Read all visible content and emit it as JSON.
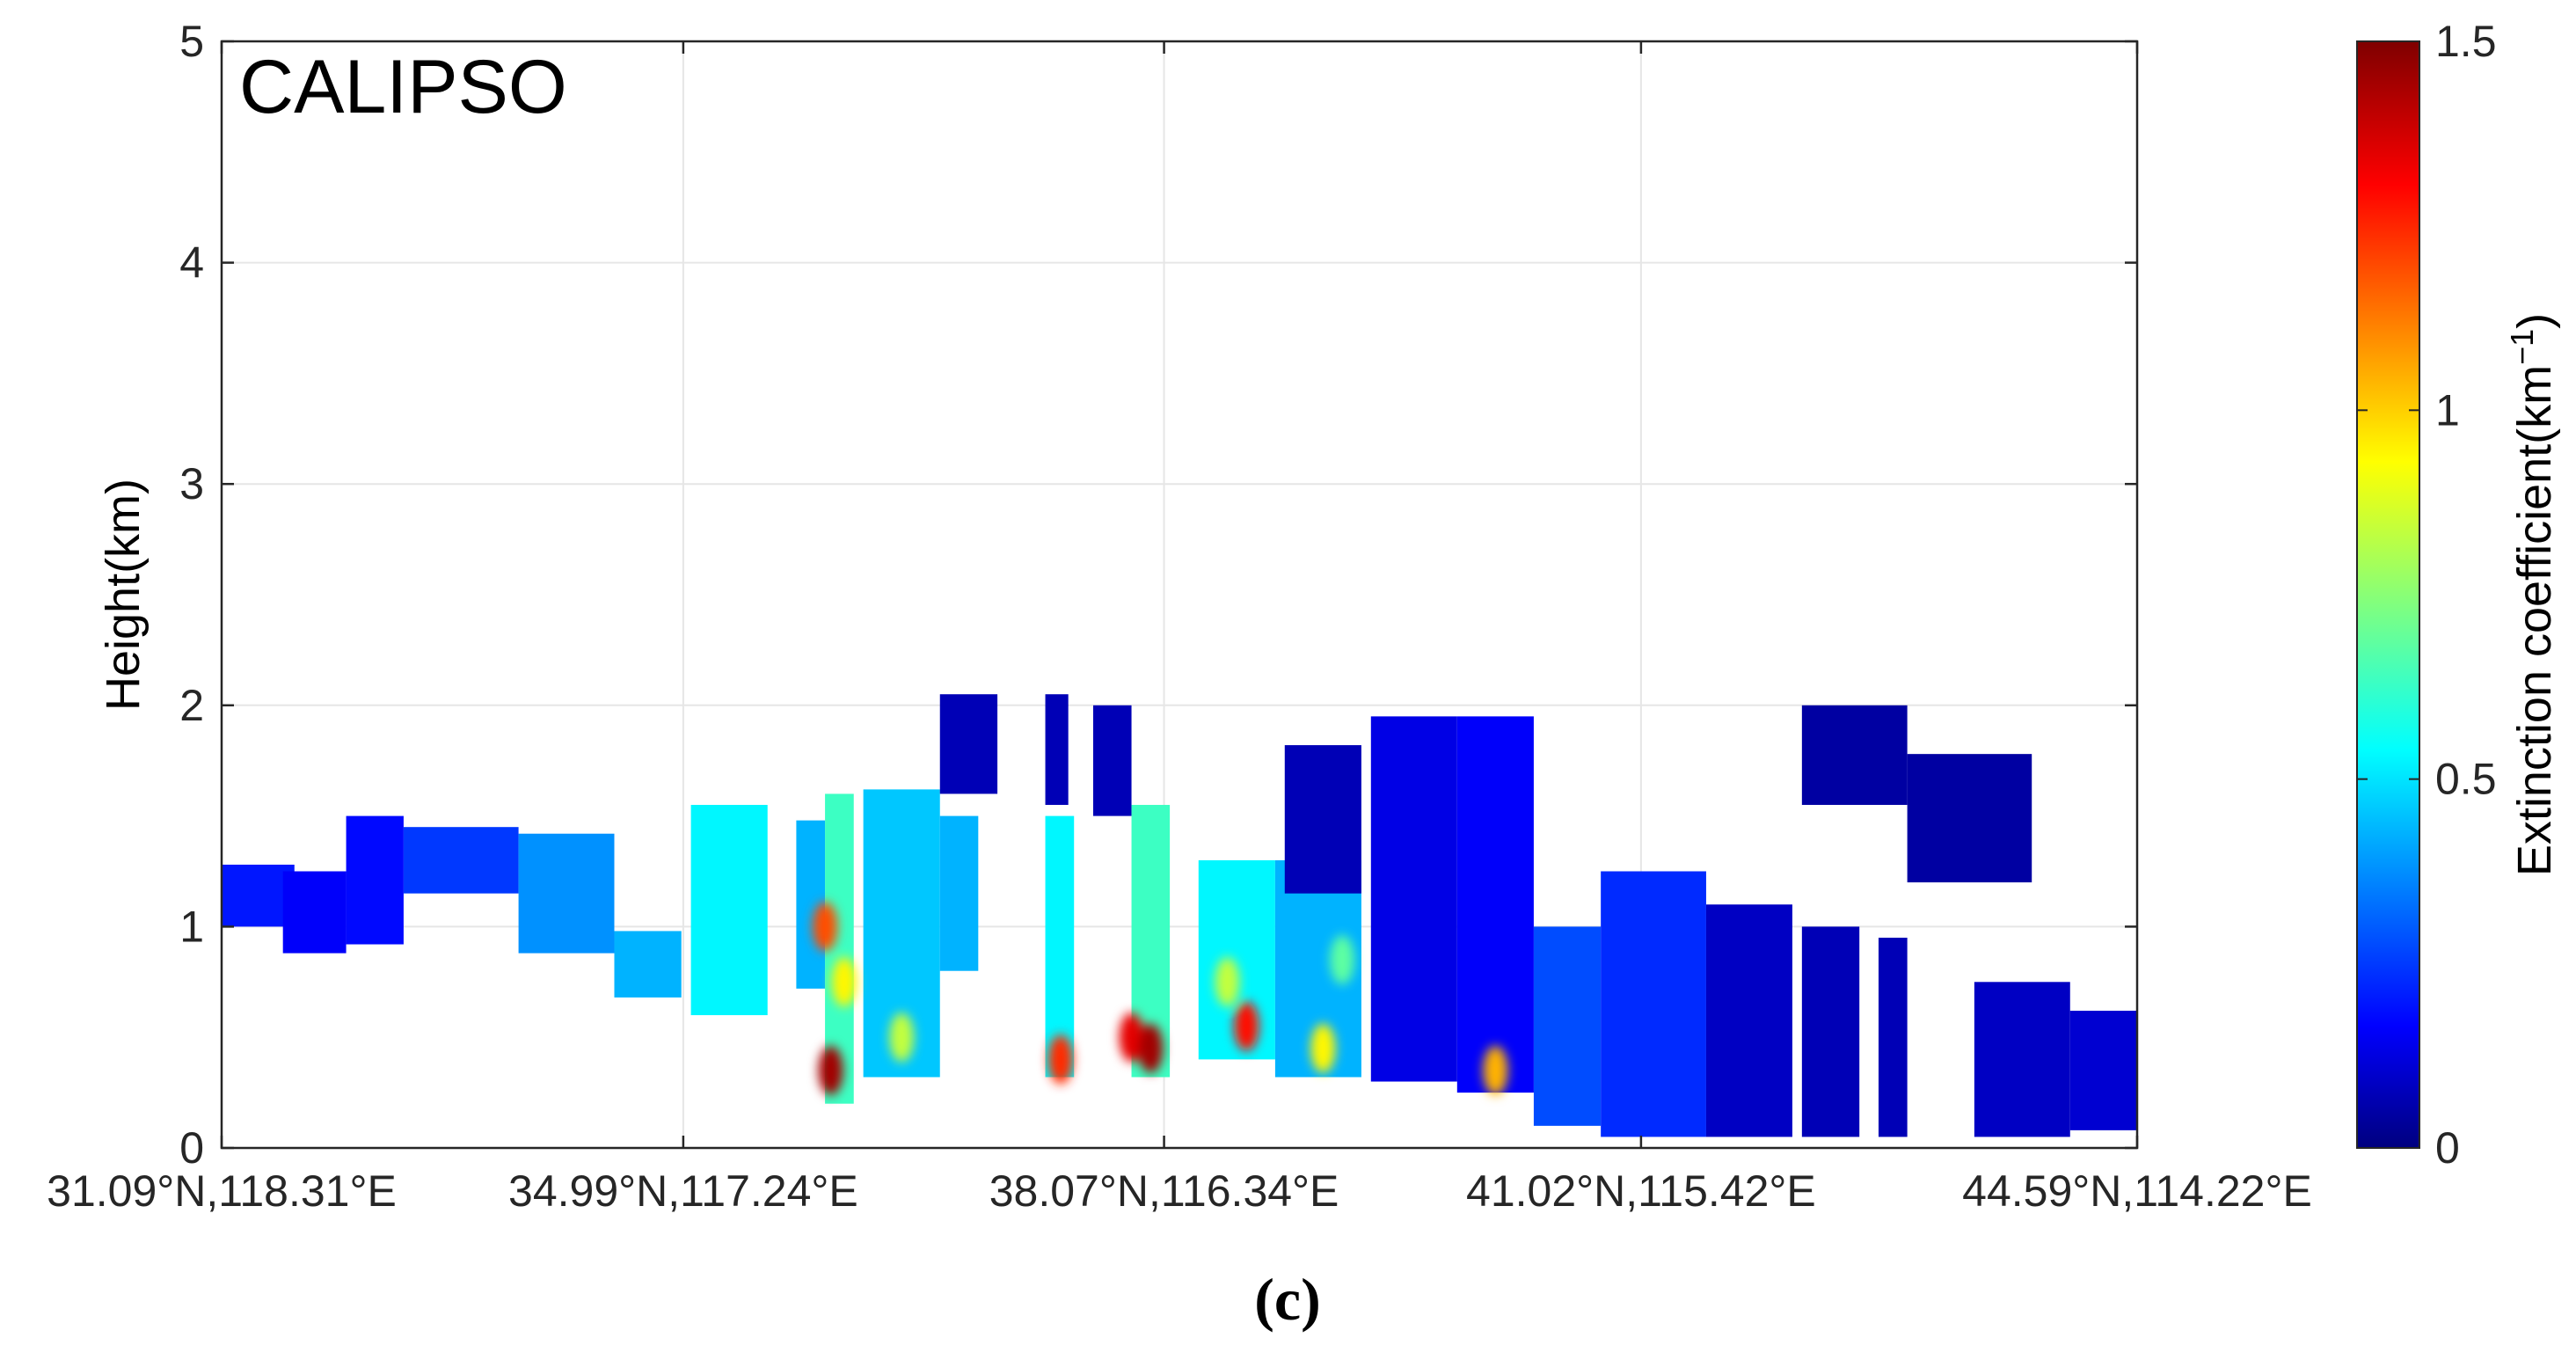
{
  "chart_data": {
    "type": "heatmap",
    "title": "CALIPSO",
    "caption": "(c)",
    "ylabel": "Height(km)",
    "xlabel": "",
    "ylim": [
      0,
      5
    ],
    "yticks": [
      "0",
      "1",
      "2",
      "3",
      "4",
      "5"
    ],
    "xlim": [
      0,
      100
    ],
    "xticks": [
      {
        "pos": 0,
        "label": "31.09°N,118.31°E"
      },
      {
        "pos": 24.1,
        "label": "34.99°N,117.24°E"
      },
      {
        "pos": 49.2,
        "label": "38.07°N,116.34°E"
      },
      {
        "pos": 74.1,
        "label": "41.02°N,115.42°E"
      },
      {
        "pos": 100,
        "label": "44.59°N,114.22°E"
      }
    ],
    "grid": true,
    "colorbar": {
      "label_main": "Extinction coefficient(km",
      "label_sup": "−1",
      "label_close": ")",
      "range": [
        0,
        1.5
      ],
      "ticks": [
        "0",
        "0.5",
        "1",
        "1.5"
      ],
      "colormap": "jet"
    },
    "columns": [
      {
        "x0": 0.0,
        "x1": 3.8,
        "bottom": 1.0,
        "top": 1.28,
        "value": 0.22
      },
      {
        "x0": 3.2,
        "x1": 6.5,
        "bottom": 0.88,
        "top": 1.25,
        "value": 0.18
      },
      {
        "x0": 6.5,
        "x1": 9.5,
        "bottom": 0.92,
        "top": 1.5,
        "value": 0.2
      },
      {
        "x0": 9.5,
        "x1": 15.5,
        "bottom": 1.15,
        "top": 1.45,
        "value": 0.27
      },
      {
        "x0": 15.5,
        "x1": 20.5,
        "bottom": 0.88,
        "top": 1.42,
        "value": 0.4
      },
      {
        "x0": 20.5,
        "x1": 24.0,
        "bottom": 0.68,
        "top": 0.98,
        "value": 0.45
      },
      {
        "x0": 24.5,
        "x1": 28.5,
        "bottom": 0.6,
        "top": 1.55,
        "value": 0.55
      },
      {
        "x0": 30.0,
        "x1": 31.5,
        "bottom": 0.72,
        "top": 1.48,
        "value": 0.45
      },
      {
        "x0": 31.5,
        "x1": 33.0,
        "bottom": 0.2,
        "top": 1.6,
        "value": 0.65
      },
      {
        "x0": 33.5,
        "x1": 37.5,
        "bottom": 0.32,
        "top": 1.62,
        "value": 0.48
      },
      {
        "x0": 37.5,
        "x1": 40.5,
        "bottom": 1.6,
        "top": 2.05,
        "value": 0.08
      },
      {
        "x0": 37.5,
        "x1": 39.5,
        "bottom": 0.8,
        "top": 1.5,
        "value": 0.45
      },
      {
        "x0": 43.0,
        "x1": 44.2,
        "bottom": 1.55,
        "top": 2.05,
        "value": 0.08
      },
      {
        "x0": 43.0,
        "x1": 44.5,
        "bottom": 0.32,
        "top": 1.5,
        "value": 0.55
      },
      {
        "x0": 45.5,
        "x1": 47.5,
        "bottom": 1.5,
        "top": 2.0,
        "value": 0.08
      },
      {
        "x0": 47.5,
        "x1": 49.5,
        "bottom": 0.32,
        "top": 1.55,
        "value": 0.65
      },
      {
        "x0": 51.0,
        "x1": 55.0,
        "bottom": 0.4,
        "top": 1.3,
        "value": 0.55
      },
      {
        "x0": 55.0,
        "x1": 59.5,
        "bottom": 0.32,
        "top": 1.3,
        "value": 0.45
      },
      {
        "x0": 55.5,
        "x1": 59.5,
        "bottom": 1.15,
        "top": 1.82,
        "value": 0.08
      },
      {
        "x0": 60.0,
        "x1": 64.5,
        "bottom": 0.3,
        "top": 1.95,
        "value": 0.15
      },
      {
        "x0": 64.5,
        "x1": 68.5,
        "bottom": 0.25,
        "top": 1.95,
        "value": 0.18
      },
      {
        "x0": 68.5,
        "x1": 72.0,
        "bottom": 0.1,
        "top": 1.0,
        "value": 0.3
      },
      {
        "x0": 72.0,
        "x1": 77.5,
        "bottom": 0.05,
        "top": 1.25,
        "value": 0.25
      },
      {
        "x0": 77.5,
        "x1": 82.0,
        "bottom": 0.05,
        "top": 1.1,
        "value": 0.1
      },
      {
        "x0": 82.5,
        "x1": 88.0,
        "bottom": 1.55,
        "top": 2.0,
        "value": 0.05
      },
      {
        "x0": 82.5,
        "x1": 85.5,
        "bottom": 0.05,
        "top": 1.0,
        "value": 0.08
      },
      {
        "x0": 88.0,
        "x1": 94.5,
        "bottom": 1.2,
        "top": 1.78,
        "value": 0.05
      },
      {
        "x0": 86.5,
        "x1": 88.0,
        "bottom": 0.05,
        "top": 0.95,
        "value": 0.08
      },
      {
        "x0": 91.5,
        "x1": 96.5,
        "bottom": 0.05,
        "top": 0.75,
        "value": 0.1
      },
      {
        "x0": 96.5,
        "x1": 100.0,
        "bottom": 0.08,
        "top": 0.62,
        "value": 0.12
      }
    ],
    "hotspots": [
      {
        "x": 31.8,
        "y": 0.35,
        "value": 1.45
      },
      {
        "x": 31.5,
        "y": 1.0,
        "value": 1.2
      },
      {
        "x": 32.5,
        "y": 0.75,
        "value": 0.95
      },
      {
        "x": 47.5,
        "y": 0.5,
        "value": 1.35
      },
      {
        "x": 48.5,
        "y": 0.45,
        "value": 1.45
      },
      {
        "x": 53.5,
        "y": 0.55,
        "value": 1.3
      },
      {
        "x": 52.5,
        "y": 0.75,
        "value": 0.85
      },
      {
        "x": 43.8,
        "y": 0.4,
        "value": 1.25
      },
      {
        "x": 57.5,
        "y": 0.45,
        "value": 0.95
      },
      {
        "x": 66.5,
        "y": 0.35,
        "value": 1.05
      },
      {
        "x": 35.5,
        "y": 0.5,
        "value": 0.85
      },
      {
        "x": 58.5,
        "y": 0.85,
        "value": 0.7
      }
    ]
  }
}
